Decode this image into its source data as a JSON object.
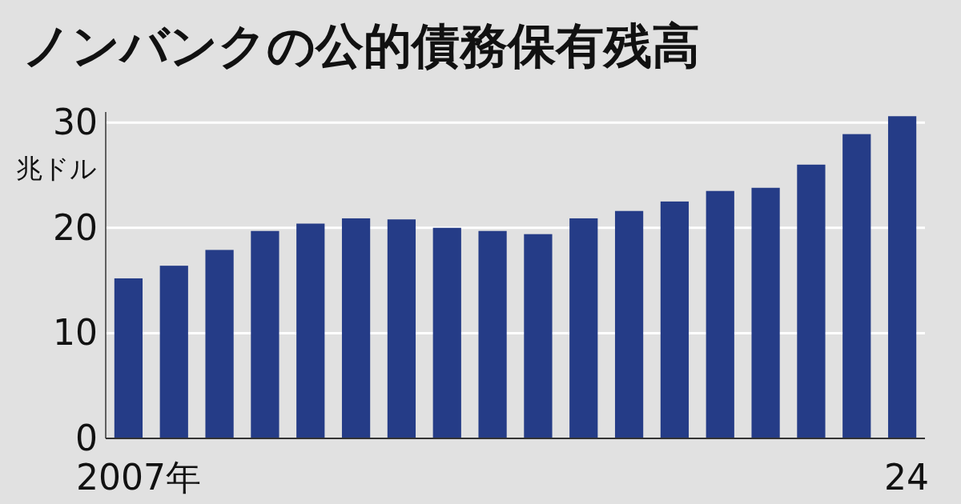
{
  "chart_data": {
    "type": "bar",
    "title": "ノンバンクの公的債務保有残高",
    "ylabel": "兆ドル",
    "categories": [
      "2007年",
      null,
      null,
      null,
      null,
      null,
      null,
      null,
      null,
      null,
      null,
      null,
      null,
      null,
      null,
      null,
      null,
      "24"
    ],
    "values": [
      15.2,
      16.4,
      17.9,
      19.7,
      20.4,
      20.9,
      20.8,
      20.0,
      19.7,
      19.4,
      20.9,
      21.6,
      22.5,
      23.5,
      23.8,
      26.0,
      28.9,
      30.6
    ],
    "color": "#253c87",
    "ylim": [
      0,
      31
    ],
    "yticks": [
      0,
      10,
      20,
      30
    ],
    "grid": "y"
  }
}
